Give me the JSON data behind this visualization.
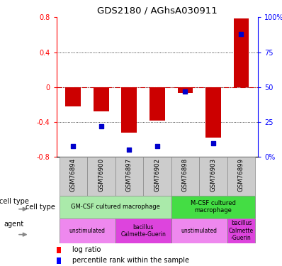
{
  "title": "GDS2180 / AGhsA030911",
  "samples": [
    "GSM76894",
    "GSM76900",
    "GSM76897",
    "GSM76902",
    "GSM76898",
    "GSM76903",
    "GSM76899"
  ],
  "log_ratio": [
    -0.22,
    -0.28,
    -0.52,
    -0.38,
    -0.065,
    -0.58,
    0.79
  ],
  "percentile_rank": [
    8,
    22,
    5,
    8,
    47,
    10,
    88
  ],
  "ylim_left": [
    -0.8,
    0.8
  ],
  "ylim_right": [
    0,
    100
  ],
  "yticks_left": [
    -0.8,
    -0.4,
    0.0,
    0.4,
    0.8
  ],
  "ytick_labels_left": [
    "-0.8",
    "-0.4",
    "0",
    "0.4",
    "0.8"
  ],
  "yticks_right": [
    0,
    25,
    50,
    75,
    100
  ],
  "ytick_labels_right": [
    "0%",
    "25",
    "50",
    "75",
    "100%"
  ],
  "bar_color": "#cc0000",
  "dot_color": "#0000cc",
  "hline_color": "#cc0000",
  "cell_type_groups": [
    {
      "label": "GM-CSF cultured macrophage",
      "start": 0,
      "end": 4,
      "color": "#aaeaaa"
    },
    {
      "label": "M-CSF cultured\nmacrophage",
      "start": 4,
      "end": 7,
      "color": "#44dd44"
    }
  ],
  "agent_groups": [
    {
      "label": "unstimulated",
      "start": 0,
      "end": 2,
      "color": "#ee88ee"
    },
    {
      "label": "bacillus\nCalmette-Guerin",
      "start": 2,
      "end": 4,
      "color": "#dd44dd"
    },
    {
      "label": "unstimulated",
      "start": 4,
      "end": 6,
      "color": "#ee88ee"
    },
    {
      "label": "bacillus\nCalmette\n-Guerin",
      "start": 6,
      "end": 7,
      "color": "#dd44dd"
    }
  ],
  "label_bg_color": "#cccccc",
  "label_border_color": "#888888"
}
